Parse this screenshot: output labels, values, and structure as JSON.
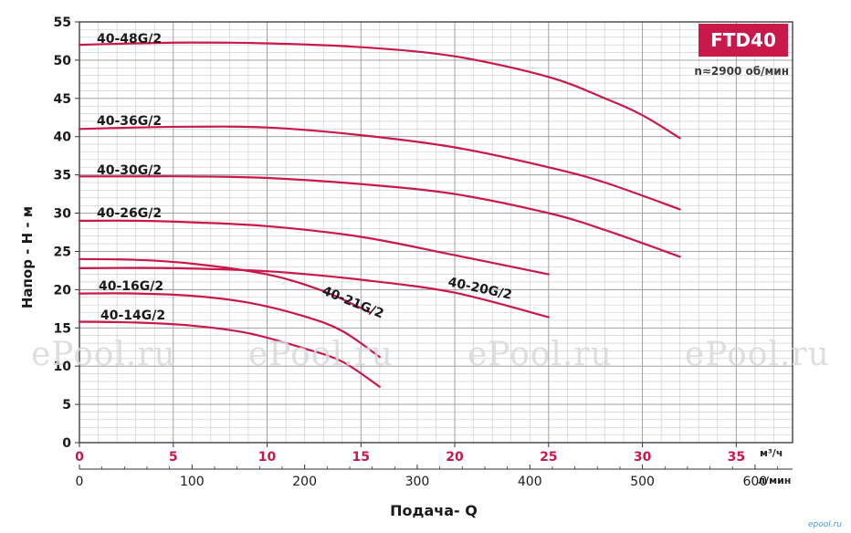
{
  "chart_data": {
    "type": "line",
    "ylabel": "Напор - H - м",
    "xlabel": "Подача- Q",
    "x_unit": "м³/ч",
    "x2_unit": "л/мин",
    "xlim": [
      0,
      38
    ],
    "ylim": [
      0,
      55
    ],
    "x_ticks": [
      0,
      5,
      10,
      15,
      20,
      25,
      30,
      35
    ],
    "x2_ticks": [
      0,
      100,
      200,
      300,
      400,
      500,
      600
    ],
    "y_ticks": [
      0,
      5,
      10,
      15,
      20,
      25,
      30,
      35,
      40,
      45,
      50,
      55
    ],
    "grid": true,
    "series": [
      {
        "name": "40-48G/2",
        "x": [
          0,
          3,
          6,
          10,
          15,
          20,
          25,
          28,
          30,
          32
        ],
        "y": [
          52,
          52.2,
          52.3,
          52.2,
          51.7,
          50.5,
          47.8,
          45,
          42.8,
          39.8
        ]
      },
      {
        "name": "40-36G/2",
        "x": [
          0,
          3,
          6,
          10,
          15,
          20,
          25,
          28,
          32
        ],
        "y": [
          41,
          41.2,
          41.3,
          41.2,
          40.2,
          38.6,
          36,
          34,
          30.5
        ]
      },
      {
        "name": "40-30G/2",
        "x": [
          0,
          3,
          6,
          10,
          15,
          20,
          25,
          28,
          32
        ],
        "y": [
          34.8,
          34.8,
          34.8,
          34.6,
          33.8,
          32.5,
          30,
          27.8,
          24.3
        ]
      },
      {
        "name": "40-26G/2",
        "x": [
          0,
          3,
          6,
          10,
          15,
          20,
          25
        ],
        "y": [
          29,
          29,
          28.8,
          28.3,
          26.9,
          24.5,
          22
        ]
      },
      {
        "name": "40-21G/2",
        "x": [
          0,
          3,
          6,
          10,
          13,
          15.5
        ],
        "y": [
          24,
          23.9,
          23.4,
          22,
          19.8,
          17
        ]
      },
      {
        "name": "40-20G/2",
        "x": [
          0,
          5,
          10,
          15,
          20,
          25
        ],
        "y": [
          22.8,
          22.8,
          22.4,
          21.3,
          19.6,
          16.4
        ]
      },
      {
        "name": "40-16G/2",
        "x": [
          0,
          3,
          6,
          9,
          12,
          14,
          16
        ],
        "y": [
          19.5,
          19.5,
          19.2,
          18.3,
          16.5,
          14.6,
          11.2
        ]
      },
      {
        "name": "40-14G/2",
        "x": [
          0,
          3,
          6,
          9,
          12,
          14,
          16
        ],
        "y": [
          15.8,
          15.7,
          15.3,
          14.3,
          12.3,
          10.6,
          7.3
        ]
      }
    ],
    "badge": "FTD40",
    "subtitle": "n≈2900 об/мин",
    "line_color": "#c8194a",
    "watermarks": [
      "ePool.ru",
      "ePool.ru",
      "ePool.ru",
      "ePool.ru"
    ],
    "corner_mark": "epool.ru"
  }
}
